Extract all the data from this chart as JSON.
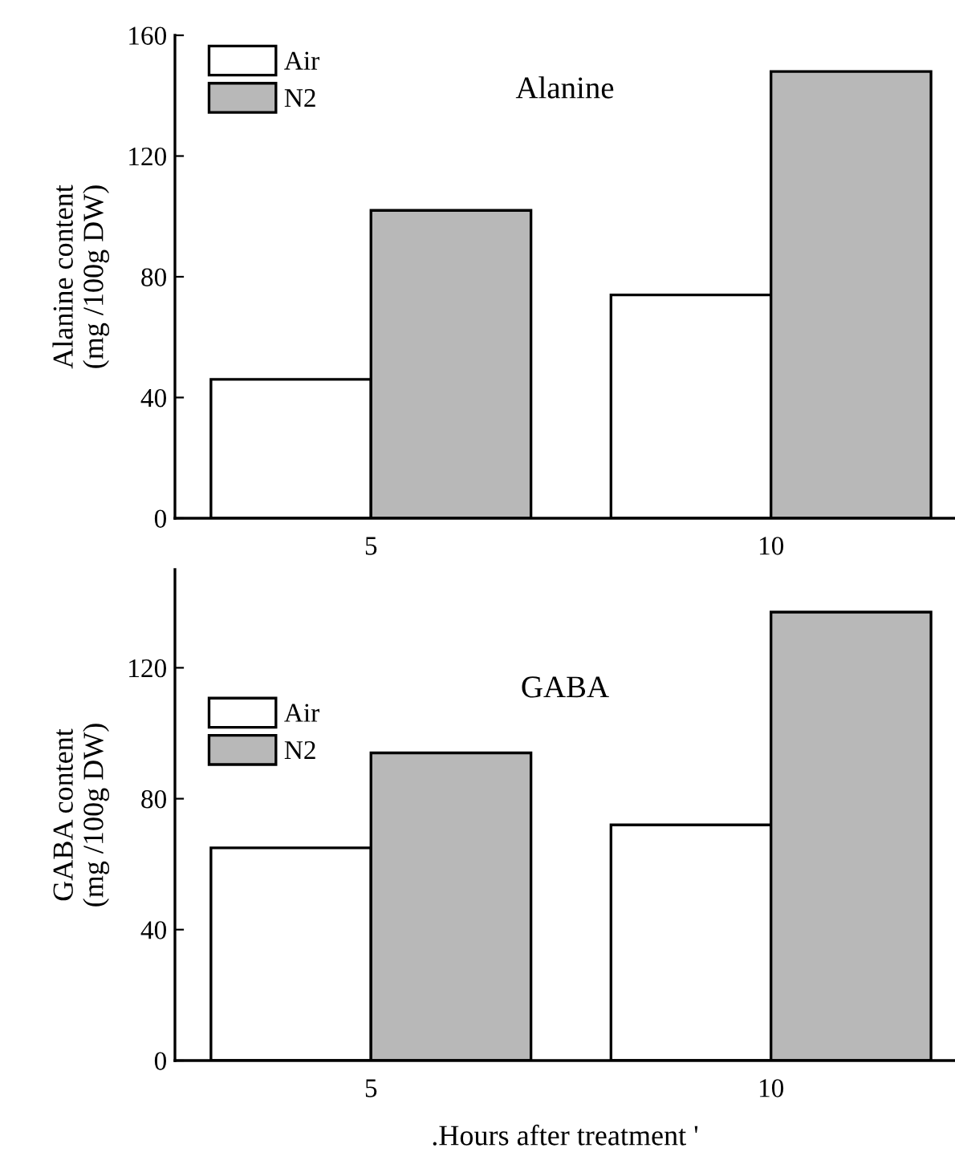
{
  "chart_data": [
    {
      "type": "bar",
      "title": "Alanine",
      "ylabel": "Alanine content\n(mg /100g DW)",
      "categories": [
        "5",
        "10"
      ],
      "series": [
        {
          "name": "Air",
          "color": "#ffffff",
          "values": [
            46,
            74
          ]
        },
        {
          "name": "N2",
          "color": "#b8b8b8",
          "values": [
            102,
            148
          ]
        }
      ],
      "ylim": [
        0,
        160
      ],
      "yticks": [
        0,
        40,
        80,
        120,
        160
      ],
      "legend": "top left",
      "grid": false
    },
    {
      "type": "bar",
      "title": "GABA",
      "ylabel": "GABA content\n(mg /100g DW)",
      "xlabel": ".Hours after treatment '",
      "categories": [
        "5",
        "10"
      ],
      "series": [
        {
          "name": "Air",
          "color": "#ffffff",
          "values": [
            65,
            72
          ]
        },
        {
          "name": "N2",
          "color": "#b8b8b8",
          "values": [
            94,
            137
          ]
        }
      ],
      "ylim": [
        0,
        150
      ],
      "yticks": [
        0,
        40,
        80,
        120
      ],
      "legend": "top left",
      "grid": false
    }
  ]
}
